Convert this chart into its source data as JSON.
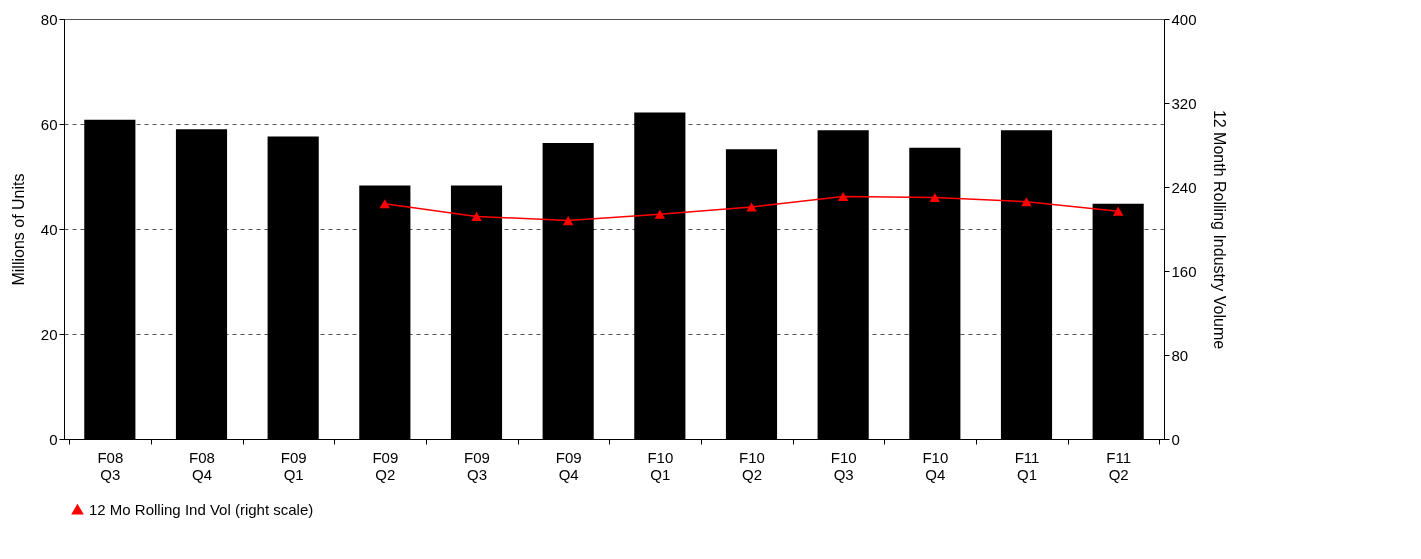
{
  "chart_data": {
    "type": "bar",
    "categories": [
      "F08 Q3",
      "F08 Q4",
      "F09 Q1",
      "F09 Q2",
      "F09 Q3",
      "F09 Q4",
      "F10 Q1",
      "F10 Q2",
      "F10 Q3",
      "F10 Q4",
      "F11 Q1",
      "F11 Q2"
    ],
    "series": [
      {
        "color": "#000000",
        "values": [
          60.8,
          59.0,
          57.6,
          48.3,
          48.3,
          56.4,
          62.2,
          55.2,
          58.8,
          55.5,
          58.8,
          44.8
        ]
      },
      {
        "type": "line",
        "name": "12 Mo Rolling Ind Vol (right scale)",
        "color": "#ff0000",
        "axis": "y2",
        "values": [
          null,
          null,
          null,
          224,
          212,
          208,
          214,
          221,
          231,
          230,
          226,
          217
        ]
      }
    ],
    "ylabel": "Millions of Units",
    "y2label": "12 Month Rolling Industry Volume",
    "ylim": [
      0,
      80
    ],
    "yticks": [
      0,
      20,
      40,
      60,
      80
    ],
    "y2lim": [
      0,
      400
    ],
    "y2ticks": [
      0,
      80,
      160,
      240,
      320,
      400
    ],
    "grid": "y",
    "legend": "bottom",
    "marker": "triangle"
  }
}
